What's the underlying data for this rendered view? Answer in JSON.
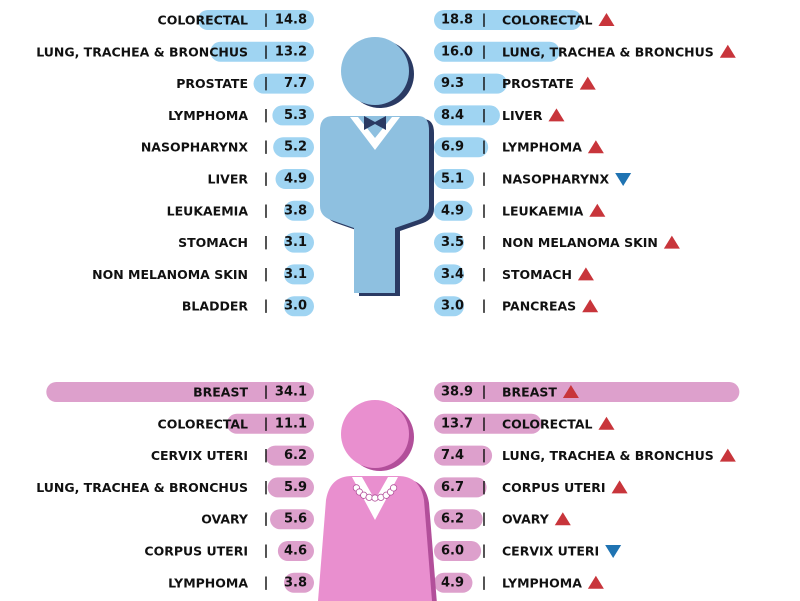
{
  "colors": {
    "male_bar": "#9fd4f2",
    "female_bar": "#dda0cc",
    "male_figure": "#8ec0e0",
    "male_figure_shadow": "#2a3a63",
    "female_figure": "#e98fcf",
    "female_figure_shadow": "#b24f9a",
    "arrow_up": "#c8353b",
    "arrow_down": "#1f73b2"
  },
  "chart_data": [
    {
      "type": "bar",
      "group": "male",
      "panel": "left",
      "bar_color": "#9fd4f2",
      "max": 40,
      "rows": [
        {
          "label": "COLORECTAL",
          "value": 14.8
        },
        {
          "label": "LUNG, TRACHEA & BRONCHUS",
          "value": 13.2
        },
        {
          "label": "PROSTATE",
          "value": 7.7
        },
        {
          "label": "LYMPHOMA",
          "value": 5.3
        },
        {
          "label": "NASOPHARYNX",
          "value": 5.2
        },
        {
          "label": "LIVER",
          "value": 4.9
        },
        {
          "label": "LEUKAEMIA",
          "value": 3.8
        },
        {
          "label": "STOMACH",
          "value": 3.1
        },
        {
          "label": "NON MELANOMA SKIN",
          "value": 3.1
        },
        {
          "label": "BLADDER",
          "value": 3.0
        }
      ]
    },
    {
      "type": "bar",
      "group": "male",
      "panel": "right",
      "bar_color": "#9fd4f2",
      "max": 40,
      "rows": [
        {
          "label": "COLORECTAL",
          "value": 18.8,
          "trend": "up"
        },
        {
          "label": "LUNG, TRACHEA & BRONCHUS",
          "value": 16.0,
          "value_text": "16.0",
          "trend": "up"
        },
        {
          "label": "PROSTATE",
          "value": 9.3,
          "trend": "up"
        },
        {
          "label": "LIVER",
          "value": 8.4,
          "trend": "up"
        },
        {
          "label": "LYMPHOMA",
          "value": 6.9,
          "trend": "up"
        },
        {
          "label": "NASOPHARYNX",
          "value": 5.1,
          "trend": "down"
        },
        {
          "label": "LEUKAEMIA",
          "value": 4.9,
          "trend": "up"
        },
        {
          "label": "NON MELANOMA SKIN",
          "value": 3.5,
          "trend": "up"
        },
        {
          "label": "STOMACH",
          "value": 3.4,
          "trend": "up"
        },
        {
          "label": "PANCREAS",
          "value": 3.0,
          "value_text": "3.0",
          "trend": "up"
        }
      ]
    },
    {
      "type": "bar",
      "group": "female",
      "panel": "left",
      "bar_color": "#dda0cc",
      "max": 40,
      "rows": [
        {
          "label": "BREAST",
          "value": 34.1
        },
        {
          "label": "COLORECTAL",
          "value": 11.1
        },
        {
          "label": "CERVIX UTERI",
          "value": 6.2
        },
        {
          "label": "LUNG, TRACHEA & BRONCHUS",
          "value": 5.9
        },
        {
          "label": "OVARY",
          "value": 5.6
        },
        {
          "label": "CORPUS UTERI",
          "value": 4.6
        },
        {
          "label": "LYMPHOMA",
          "value": 3.8
        }
      ]
    },
    {
      "type": "bar",
      "group": "female",
      "panel": "right",
      "bar_color": "#dda0cc",
      "max": 40,
      "rows": [
        {
          "label": "BREAST",
          "value": 38.9,
          "trend": "up"
        },
        {
          "label": "COLORECTAL",
          "value": 13.7,
          "trend": "up"
        },
        {
          "label": "LUNG, TRACHEA & BRONCHUS",
          "value": 7.4,
          "trend": "up"
        },
        {
          "label": "CORPUS UTERI",
          "value": 6.7,
          "trend": "up"
        },
        {
          "label": "OVARY",
          "value": 6.2,
          "trend": "up"
        },
        {
          "label": "CERVIX UTERI",
          "value": 6.0,
          "value_text": "6.0",
          "trend": "down"
        },
        {
          "label": "LYMPHOMA",
          "value": 4.9,
          "trend": "up"
        }
      ]
    }
  ]
}
